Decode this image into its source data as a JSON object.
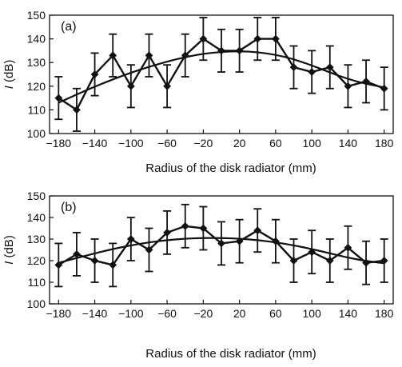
{
  "chart_data": [
    {
      "type": "line",
      "panel_label": "(a)",
      "xlabel": "Radius of the disk radiator (mm)",
      "ylabel_italic": "I",
      "ylabel_unit": " (dB)",
      "xlim": [
        -190,
        190
      ],
      "ylim": [
        100,
        150
      ],
      "x_ticks": [
        -180,
        -140,
        -100,
        -60,
        -20,
        20,
        60,
        100,
        140,
        180
      ],
      "x_tick_labels": [
        "−180",
        "−140",
        "−100",
        "−60",
        "−20",
        "20",
        "60",
        "100",
        "140",
        "180"
      ],
      "y_ticks": [
        100,
        110,
        120,
        130,
        140,
        150
      ],
      "y_tick_labels": [
        "100",
        "110",
        "120",
        "130",
        "140",
        "150"
      ],
      "measured": {
        "x": [
          -180,
          -160,
          -140,
          -120,
          -100,
          -80,
          -60,
          -40,
          -20,
          0,
          20,
          40,
          60,
          80,
          100,
          120,
          140,
          160,
          180
        ],
        "y": [
          115,
          110,
          125,
          133,
          120,
          133,
          120,
          133,
          140,
          135,
          135,
          140,
          140,
          128,
          126,
          128,
          120,
          122,
          119
        ],
        "error": [
          9,
          9,
          9,
          9,
          9,
          9,
          9,
          9,
          9,
          9,
          9,
          9,
          9,
          9,
          9,
          9,
          9,
          9,
          9
        ]
      },
      "fit": {
        "x": [
          -180,
          -160,
          -140,
          -120,
          -100,
          -80,
          -60,
          -40,
          -20,
          0,
          20,
          40,
          60,
          80,
          100,
          120,
          140,
          160,
          180
        ],
        "y": [
          113,
          116.5,
          119.8,
          122.9,
          125.7,
          128.2,
          130.4,
          132.3,
          133.7,
          134.5,
          134.8,
          134.4,
          133.3,
          131.4,
          128.8,
          125.8,
          123,
          121,
          119.5
        ]
      },
      "color": "#111111"
    },
    {
      "type": "line",
      "panel_label": "(b)",
      "xlabel": "Radius of the disk radiator (mm)",
      "ylabel_italic": "I",
      "ylabel_unit": " (dB)",
      "xlim": [
        -190,
        190
      ],
      "ylim": [
        100,
        150
      ],
      "x_ticks": [
        -180,
        -140,
        -100,
        -60,
        -20,
        20,
        60,
        100,
        140,
        180
      ],
      "x_tick_labels": [
        "−180",
        "−140",
        "−100",
        "−60",
        "−20",
        "20",
        "60",
        "100",
        "140",
        "180"
      ],
      "y_ticks": [
        100,
        110,
        120,
        130,
        140,
        150
      ],
      "y_tick_labels": [
        "100",
        "110",
        "120",
        "130",
        "140",
        "150"
      ],
      "measured": {
        "x": [
          -180,
          -160,
          -140,
          -120,
          -100,
          -80,
          -60,
          -40,
          -20,
          0,
          20,
          40,
          60,
          80,
          100,
          120,
          140,
          160,
          180
        ],
        "y": [
          118,
          123,
          120,
          118,
          130,
          125,
          133,
          136,
          135,
          128,
          129,
          134,
          129,
          120,
          124,
          120,
          126,
          119,
          120
        ],
        "error": [
          10,
          10,
          10,
          10,
          10,
          10,
          10,
          10,
          10,
          10,
          10,
          10,
          10,
          10,
          10,
          10,
          10,
          10,
          10
        ]
      },
      "fit": {
        "x": [
          -180,
          -160,
          -140,
          -120,
          -100,
          -80,
          -60,
          -40,
          -20,
          0,
          20,
          40,
          60,
          80,
          100,
          120,
          140,
          160,
          180
        ],
        "y": [
          119,
          121.2,
          123.4,
          125.4,
          127.1,
          128.5,
          129.5,
          130.2,
          130.5,
          130.5,
          130.2,
          129.5,
          128.5,
          127.1,
          125.4,
          123.4,
          121.4,
          119.8,
          118.8
        ]
      },
      "color": "#111111"
    }
  ]
}
